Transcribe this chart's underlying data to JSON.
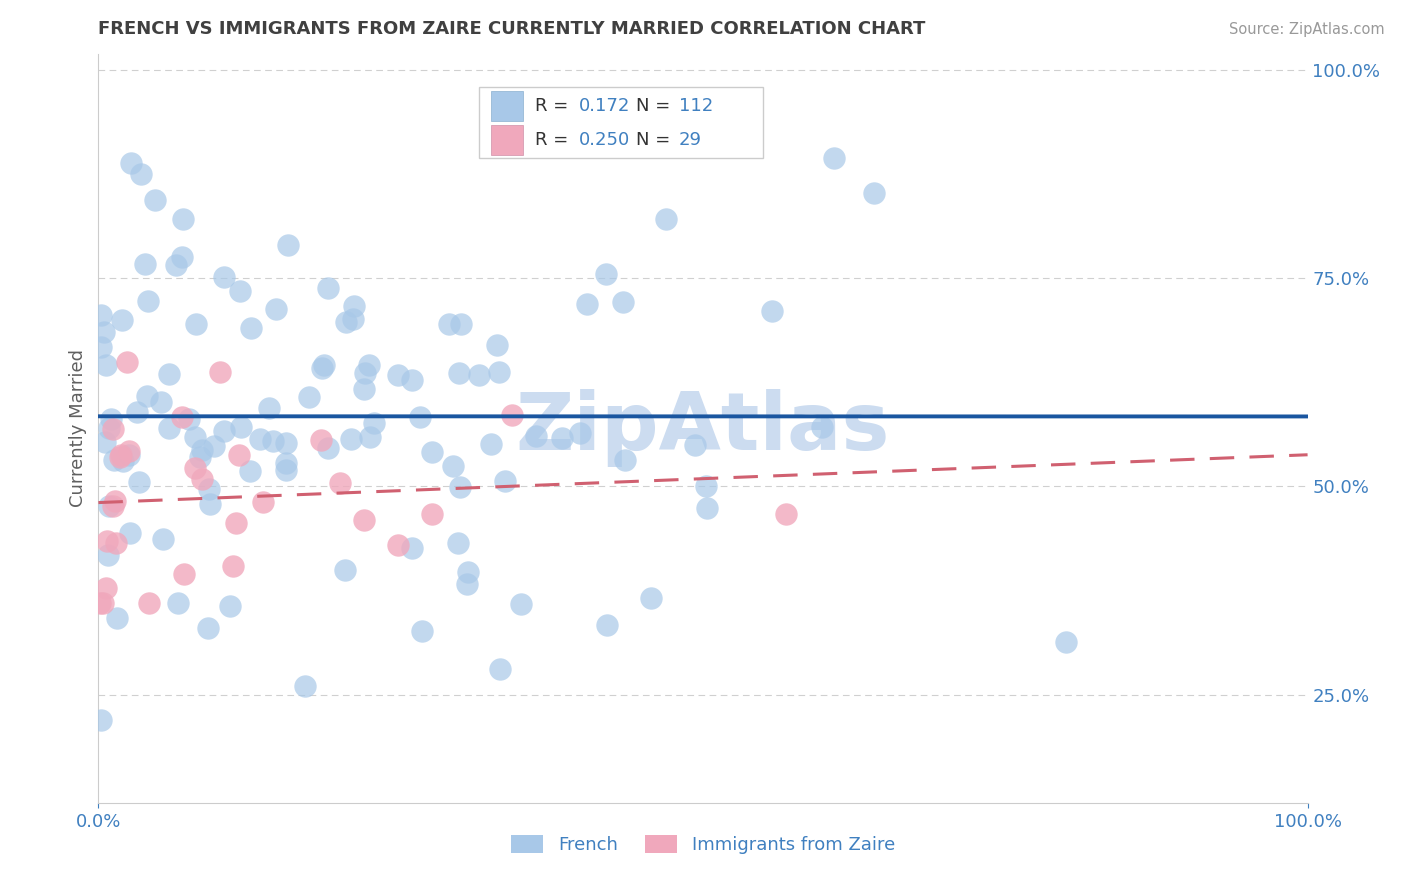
{
  "title": "FRENCH VS IMMIGRANTS FROM ZAIRE CURRENTLY MARRIED CORRELATION CHART",
  "source_text": "Source: ZipAtlas.com",
  "ylabel_text": "Currently Married",
  "blue_color": "#a8c8e8",
  "pink_color": "#f0a8bc",
  "blue_line_color": "#1a56a0",
  "pink_line_color": "#d06070",
  "watermark": "ZipAtlas",
  "watermark_color": "#ccdcf0",
  "background_color": "#ffffff",
  "grid_color": "#d0d0d0",
  "title_color": "#404040",
  "axis_label_color": "#606060",
  "tick_color": "#4080c0",
  "legend_text_color": "#4080c0",
  "xlim": [
    0.0,
    1.0
  ],
  "ylim": [
    0.12,
    1.02
  ]
}
